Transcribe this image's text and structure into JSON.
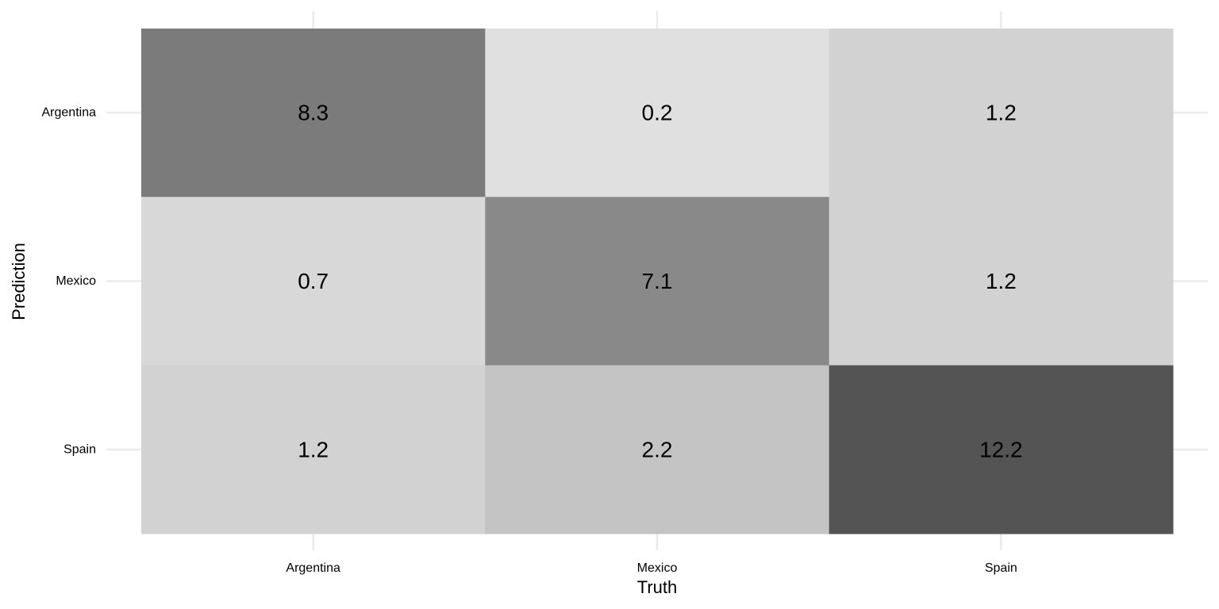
{
  "chart_data": {
    "type": "heatmap",
    "x_categories": [
      "Argentina",
      "Mexico",
      "Spain"
    ],
    "y_categories": [
      "Argentina",
      "Mexico",
      "Spain"
    ],
    "xlabel": "Truth",
    "ylabel": "Prediction",
    "cells": [
      {
        "x": "Argentina",
        "y": "Argentina",
        "value": 8.3,
        "label": "8.3",
        "color": "#7b7b7b"
      },
      {
        "x": "Mexico",
        "y": "Argentina",
        "value": 0.2,
        "label": "0.2",
        "color": "#e0e0e0"
      },
      {
        "x": "Spain",
        "y": "Argentina",
        "value": 1.2,
        "label": "1.2",
        "color": "#d2d2d2"
      },
      {
        "x": "Argentina",
        "y": "Mexico",
        "value": 0.7,
        "label": "0.7",
        "color": "#d8d8d8"
      },
      {
        "x": "Mexico",
        "y": "Mexico",
        "value": 7.1,
        "label": "7.1",
        "color": "#898989"
      },
      {
        "x": "Spain",
        "y": "Mexico",
        "value": 1.2,
        "label": "1.2",
        "color": "#d2d2d2"
      },
      {
        "x": "Argentina",
        "y": "Spain",
        "value": 1.2,
        "label": "1.2",
        "color": "#d2d2d2"
      },
      {
        "x": "Mexico",
        "y": "Spain",
        "value": 2.2,
        "label": "2.2",
        "color": "#c4c4c4"
      },
      {
        "x": "Spain",
        "y": "Spain",
        "value": 12.2,
        "label": "12.2",
        "color": "#545454"
      }
    ],
    "grid": true,
    "legend": "none"
  }
}
